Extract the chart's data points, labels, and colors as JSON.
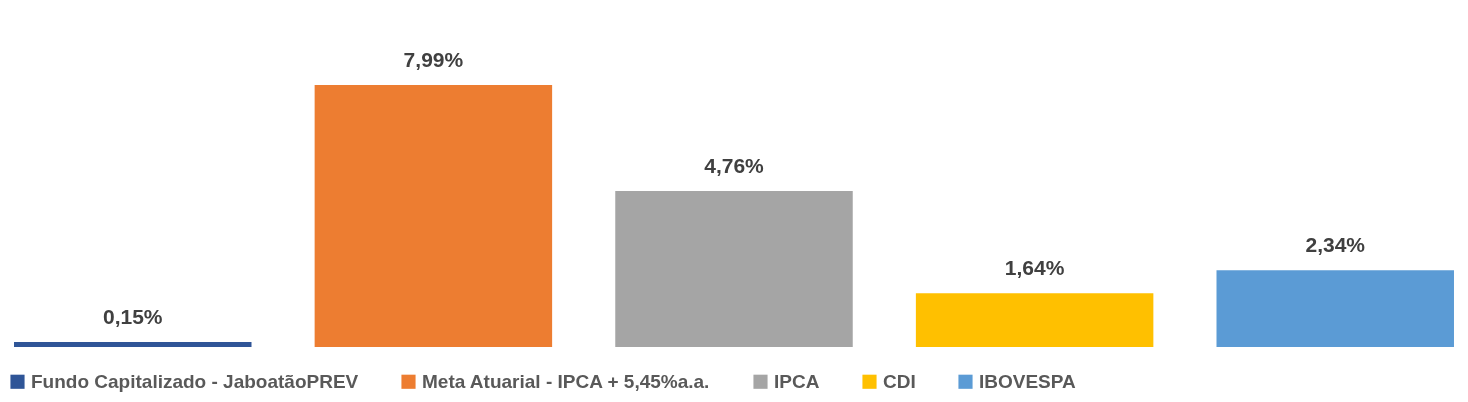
{
  "chart_data": {
    "type": "bar",
    "categories": [
      null
    ],
    "legend": "bottom",
    "series": [
      {
        "name": "Fundo Capitalizado - JaboatãoPREV",
        "color": "#2f5597",
        "values": [
          0.15
        ],
        "value_labels": [
          "0,15%"
        ]
      },
      {
        "name": "Meta Atuarial - IPCA + 5,45%a.a.",
        "color": "#ed7d31",
        "values": [
          7.99
        ],
        "value_labels": [
          "7,99%"
        ]
      },
      {
        "name": "IPCA",
        "color": "#a5a5a5",
        "values": [
          4.76
        ],
        "value_labels": [
          "4,76%"
        ]
      },
      {
        "name": "CDI",
        "color": "#ffc000",
        "values": [
          1.64
        ],
        "value_labels": [
          "1,64%"
        ]
      },
      {
        "name": "IBOVESPA",
        "color": "#5b9bd5",
        "values": [
          2.34
        ],
        "value_labels": [
          "2,34%"
        ]
      }
    ]
  }
}
